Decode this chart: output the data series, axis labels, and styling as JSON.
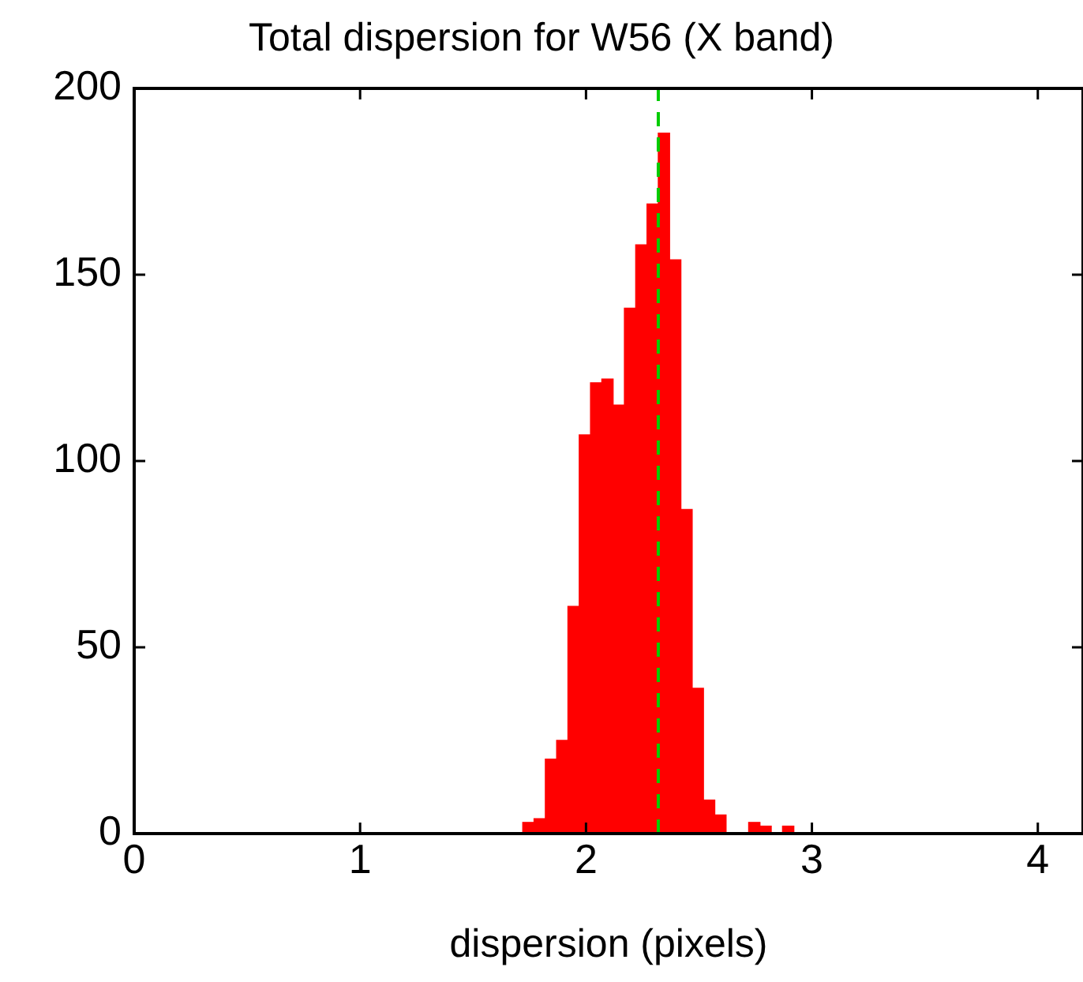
{
  "chart_data": {
    "type": "histogram",
    "title": "Total dispersion for W56 (X band)",
    "xlabel": "dispersion (pixels)",
    "bins": [
      1.72,
      1.77,
      1.82,
      1.87,
      1.92,
      1.97,
      2.02,
      2.07,
      2.12,
      2.17,
      2.22,
      2.27,
      2.32,
      2.37,
      2.42,
      2.47,
      2.52,
      2.57,
      2.62,
      2.67,
      2.72,
      2.77,
      2.82,
      2.87,
      2.92
    ],
    "values": [
      3,
      4,
      20,
      25,
      61,
      107,
      121,
      122,
      115,
      141,
      158,
      169,
      188,
      154,
      87,
      39,
      9,
      5,
      0,
      0,
      3,
      2,
      0,
      2
    ],
    "color": "#ff0000",
    "xlim": [
      0,
      4.2
    ],
    "xticks": [
      0,
      1,
      2,
      3,
      4
    ],
    "ylim": [
      0,
      200
    ],
    "yticks": [
      0,
      50,
      100,
      150,
      200
    ],
    "grid": false,
    "legend": false,
    "ref_lines": [
      {
        "axis": "x",
        "value": 2.32,
        "color": "#00cc00",
        "line_style": "dashed"
      }
    ]
  }
}
